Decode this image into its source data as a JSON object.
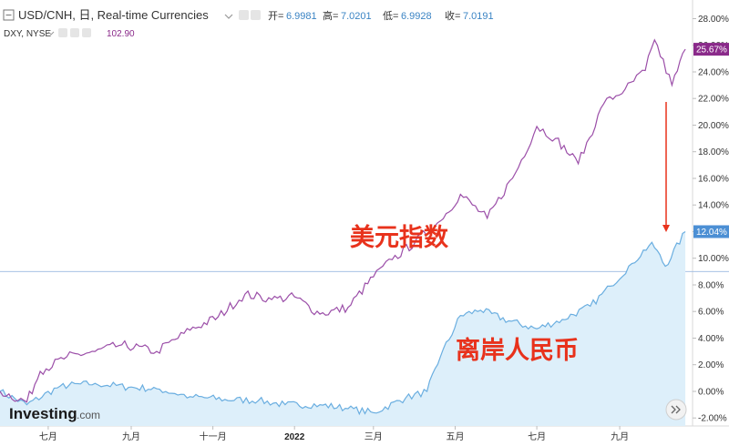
{
  "header": {
    "symbol_title": "USD/CNH, 日, Real-time Currencies",
    "open_label": "开=",
    "open_value": "6.9981",
    "high_label": "高=",
    "high_value": "7.0201",
    "low_label": "低=",
    "low_value": "6.9928",
    "close_label": "收=",
    "close_value": "7.0191"
  },
  "comparison": {
    "symbol": "DXY, NYSE",
    "value": "102.90"
  },
  "brand": {
    "name": "Investing",
    "suffix": ".com"
  },
  "nav": {
    "forward_icon": "double-chevron-right-icon"
  },
  "colors": {
    "dxy_line": "#9b4ea8",
    "cnh_line": "#6aaee0",
    "cnh_fill": "#ddeffa",
    "annotation": "#e8321c",
    "dxy_tag": "#8a2a8a",
    "cnh_tag": "#4c8fd4"
  },
  "chart_data": {
    "type": "line",
    "x_axis_ticks": [
      "七月",
      "九月",
      "十一月",
      "2022",
      "三月",
      "五月",
      "七月",
      "九月"
    ],
    "y_ticks": [
      "28.00%",
      "26.00%",
      "24.00%",
      "22.00%",
      "20.00%",
      "18.00%",
      "16.00%",
      "14.00%",
      "12.00%",
      "10.00%",
      "8.00%",
      "6.00%",
      "4.00%",
      "2.00%",
      "0.00%",
      "-2.00%"
    ],
    "ylim": [
      -2.6,
      29.4
    ],
    "y_unit": "%",
    "baseline_pct": 9.0,
    "annotations": [
      "美元指数",
      "离岸人民币"
    ],
    "series": [
      {
        "name": "美元指数",
        "last_value_label": "25.67%",
        "x": [
          "2021-05-26",
          "2021-06-15",
          "2021-06-25",
          "2021-07-15",
          "2021-08-05",
          "2021-08-25",
          "2021-09-20",
          "2021-10-15",
          "2021-11-05",
          "2021-11-25",
          "2021-12-15",
          "2022-01-01",
          "2022-01-20",
          "2022-02-10",
          "2022-03-01",
          "2022-03-15",
          "2022-04-01",
          "2022-04-20",
          "2022-05-05",
          "2022-05-25",
          "2022-06-15",
          "2022-07-01",
          "2022-07-15",
          "2022-08-01",
          "2022-08-20",
          "2022-09-05",
          "2022-09-20",
          "2022-09-27",
          "2022-10-10",
          "2022-10-20"
        ],
        "values": [
          0.0,
          -0.8,
          1.5,
          2.6,
          3.0,
          3.5,
          3.0,
          4.6,
          5.6,
          7.3,
          6.9,
          7.1,
          5.8,
          6.3,
          8.6,
          9.9,
          11.2,
          12.8,
          14.8,
          13.0,
          16.4,
          19.9,
          19.0,
          17.1,
          21.6,
          22.7,
          24.1,
          26.4,
          23.0,
          25.7
        ]
      },
      {
        "name": "离岸人民币",
        "last_value_label": "12.04%",
        "x": [
          "2021-05-26",
          "2021-06-15",
          "2021-07-10",
          "2021-08-05",
          "2021-08-30",
          "2021-09-20",
          "2021-10-15",
          "2021-11-10",
          "2021-12-05",
          "2021-12-25",
          "2022-01-20",
          "2022-02-10",
          "2022-03-01",
          "2022-03-25",
          "2022-04-10",
          "2022-04-20",
          "2022-05-05",
          "2022-05-20",
          "2022-06-10",
          "2022-07-01",
          "2022-07-20",
          "2022-08-10",
          "2022-08-25",
          "2022-09-10",
          "2022-09-25",
          "2022-10-05",
          "2022-10-20"
        ],
        "values": [
          0.0,
          -1.0,
          0.4,
          0.6,
          0.3,
          0.2,
          -0.4,
          -0.6,
          -0.7,
          -1.0,
          -1.0,
          -1.3,
          -1.6,
          -0.5,
          0.0,
          2.6,
          5.7,
          6.1,
          5.3,
          4.7,
          5.4,
          6.4,
          7.9,
          9.6,
          11.2,
          9.4,
          12.0
        ]
      }
    ]
  }
}
